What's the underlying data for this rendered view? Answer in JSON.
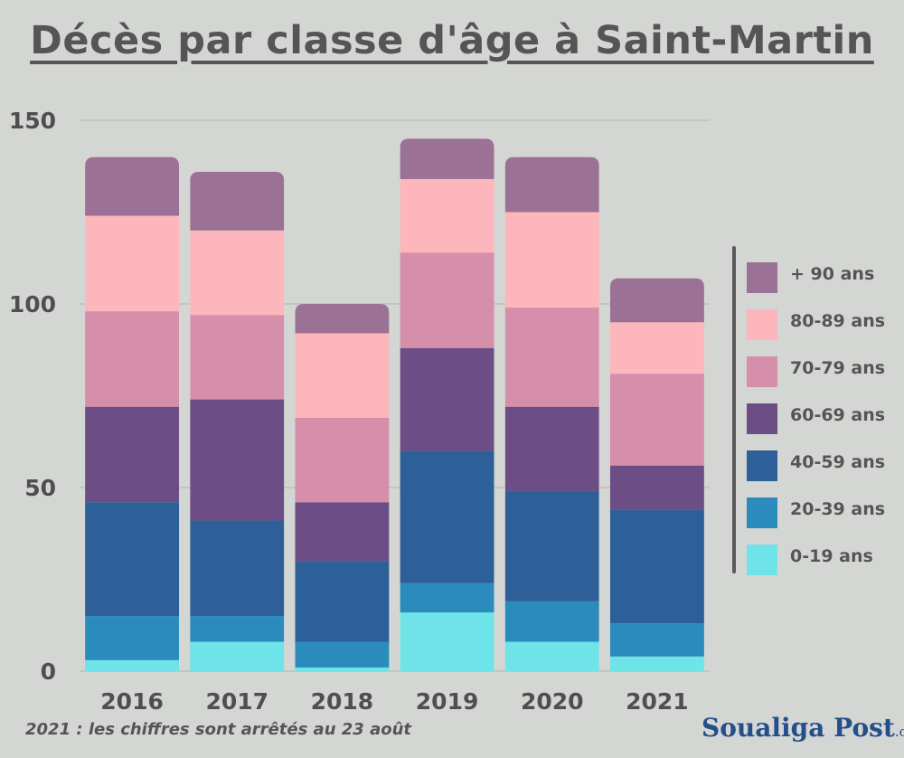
{
  "header": {
    "title": "Décès par classe d'âge à Saint-Martin"
  },
  "chart_data": {
    "type": "bar",
    "stacked": true,
    "title": "Décès par classe d'âge à Saint-Martin",
    "categories": [
      "2016",
      "2017",
      "2018",
      "2019",
      "2020",
      "2021"
    ],
    "yticks": [
      "0",
      "50",
      "100",
      "150"
    ],
    "ylim": [
      0,
      150
    ],
    "grid": true,
    "legend_position": "right",
    "series": [
      {
        "name": "0-19 ans",
        "color": "#6ee4e8",
        "values": [
          3,
          8,
          1,
          16,
          8,
          4
        ]
      },
      {
        "name": "20-39 ans",
        "color": "#2b8bbd",
        "values": [
          12,
          7,
          7,
          8,
          11,
          9
        ]
      },
      {
        "name": "40-59 ans",
        "color": "#2d5f98",
        "values": [
          31,
          26,
          22,
          36,
          30,
          31
        ]
      },
      {
        "name": "60-69 ans",
        "color": "#6d4d86",
        "values": [
          26,
          33,
          16,
          28,
          23,
          12
        ]
      },
      {
        "name": "70-79 ans",
        "color": "#d68faa",
        "values": [
          26,
          23,
          23,
          26,
          27,
          25
        ]
      },
      {
        "name": "80-89 ans",
        "color": "#fdb6bb",
        "values": [
          26,
          23,
          23,
          20,
          26,
          14
        ]
      },
      {
        "name": "+ 90 ans",
        "color": "#9b7295",
        "values": [
          16,
          16,
          8,
          11,
          15,
          12
        ]
      }
    ]
  },
  "legend": {
    "items": [
      {
        "label": "+ 90 ans",
        "color": "#9b7295"
      },
      {
        "label": "80-89 ans",
        "color": "#fdb6bb"
      },
      {
        "label": "70-79 ans",
        "color": "#d68faa"
      },
      {
        "label": "60-69 ans",
        "color": "#6d4d86"
      },
      {
        "label": "40-59 ans",
        "color": "#2d5f98"
      },
      {
        "label": "20-39 ans",
        "color": "#2b8bbd"
      },
      {
        "label": "0-19 ans",
        "color": "#6ee4e8"
      }
    ]
  },
  "footnote": "2021 : les chiffres sont arrêtés au 23 août",
  "logo": {
    "name": "Soualiga Post",
    "suffix": ".com"
  }
}
